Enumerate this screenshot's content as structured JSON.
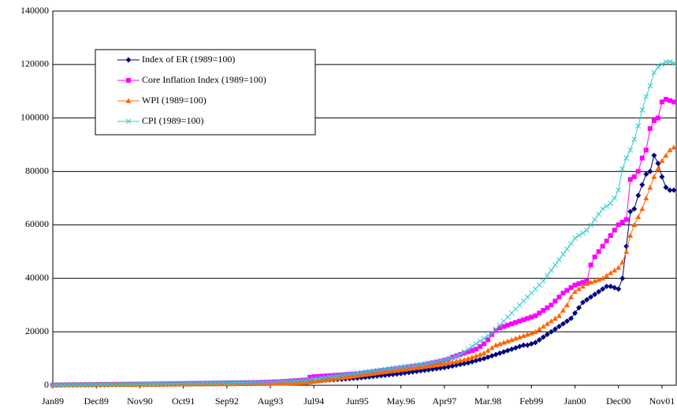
{
  "chart_data": {
    "type": "line",
    "categories": [
      "Jan89",
      null,
      null,
      null,
      null,
      null,
      null,
      null,
      null,
      null,
      null,
      "Dec89",
      null,
      null,
      null,
      null,
      null,
      null,
      null,
      null,
      null,
      null,
      "Nov90",
      null,
      null,
      null,
      null,
      null,
      null,
      null,
      null,
      null,
      null,
      "Oct91",
      null,
      null,
      null,
      null,
      null,
      null,
      null,
      null,
      null,
      null,
      "Sep92",
      null,
      null,
      null,
      null,
      null,
      null,
      null,
      null,
      null,
      null,
      "Aug93",
      null,
      null,
      null,
      null,
      null,
      null,
      null,
      null,
      null,
      null,
      "Jul94",
      null,
      null,
      null,
      null,
      null,
      null,
      null,
      null,
      null,
      null,
      "Jun95",
      null,
      null,
      null,
      null,
      null,
      null,
      null,
      null,
      null,
      null,
      "May.96",
      null,
      null,
      null,
      null,
      null,
      null,
      null,
      null,
      null,
      null,
      "Apr97",
      null,
      null,
      null,
      null,
      null,
      null,
      null,
      null,
      null,
      null,
      "Mar.98",
      null,
      null,
      null,
      null,
      null,
      null,
      null,
      null,
      null,
      null,
      "Feb99",
      null,
      null,
      null,
      null,
      null,
      null,
      null,
      null,
      null,
      null,
      "Jan00",
      null,
      null,
      null,
      null,
      null,
      null,
      null,
      null,
      null,
      null,
      "Dec00",
      null,
      null,
      null,
      null,
      null,
      null,
      null,
      null,
      null,
      null,
      "Nov01",
      null,
      null,
      null
    ],
    "series": [
      {
        "name": "Index of ER (1989=100)",
        "color": "#000080",
        "marker": "diamond",
        "values": [
          100,
          110,
          120,
          130,
          140,
          150,
          160,
          170,
          180,
          190,
          200,
          210,
          220,
          230,
          240,
          250,
          260,
          270,
          280,
          290,
          300,
          310,
          320,
          330,
          340,
          350,
          360,
          380,
          400,
          420,
          440,
          460,
          480,
          500,
          520,
          540,
          560,
          580,
          600,
          620,
          640,
          660,
          680,
          700,
          720,
          740,
          760,
          780,
          800,
          820,
          840,
          860,
          880,
          900,
          920,
          940,
          960,
          980,
          1000,
          1050,
          1100,
          1150,
          1200,
          1300,
          1400,
          1500,
          1600,
          1700,
          1800,
          1900,
          2000,
          2100,
          2200,
          2300,
          2400,
          2500,
          2600,
          2700,
          2850,
          3000,
          3150,
          3300,
          3450,
          3600,
          3750,
          3900,
          4050,
          4200,
          4400,
          4600,
          4800,
          5000,
          5200,
          5400,
          5600,
          5800,
          6000,
          6200,
          6400,
          6600,
          6900,
          7200,
          7500,
          7800,
          8100,
          8400,
          8800,
          9200,
          9600,
          10000,
          10500,
          11000,
          11500,
          12000,
          12500,
          13000,
          13500,
          14000,
          14500,
          15000,
          15000,
          15500,
          16000,
          17000,
          18000,
          19000,
          20000,
          21000,
          22000,
          23000,
          24000,
          25000,
          27000,
          29000,
          31000,
          32000,
          33000,
          34000,
          35000,
          36000,
          37000,
          37000,
          36500,
          36000,
          40000,
          52000,
          65000,
          66000,
          71000,
          75000,
          79000,
          80000,
          86000,
          83000,
          78000,
          74000,
          73000,
          73000
        ]
      },
      {
        "name": "Core Inflation Index (1989=100)",
        "color": "#ff00ff",
        "marker": "square",
        "values": [
          100,
          115,
          130,
          145,
          160,
          175,
          190,
          205,
          220,
          235,
          250,
          265,
          280,
          295,
          310,
          325,
          340,
          355,
          370,
          385,
          400,
          415,
          430,
          445,
          460,
          480,
          500,
          520,
          540,
          560,
          580,
          600,
          620,
          640,
          660,
          680,
          700,
          720,
          740,
          760,
          780,
          800,
          820,
          840,
          860,
          880,
          900,
          920,
          940,
          960,
          980,
          1000,
          1050,
          1100,
          1150,
          1200,
          1250,
          1300,
          1400,
          1500,
          1600,
          1700,
          1800,
          1900,
          2000,
          3000,
          3200,
          3300,
          3400,
          3500,
          3600,
          3700,
          3800,
          3900,
          4000,
          4100,
          4200,
          4300,
          4500,
          4700,
          4900,
          5100,
          5300,
          5500,
          5700,
          5900,
          6100,
          6300,
          6500,
          6700,
          6900,
          7100,
          7300,
          7500,
          7800,
          8100,
          8400,
          8700,
          9000,
          9400,
          9800,
          10500,
          11000,
          11500,
          12000,
          12500,
          13000,
          13500,
          14500,
          15500,
          17000,
          19000,
          20500,
          21500,
          22000,
          22500,
          23000,
          23500,
          24000,
          24500,
          25000,
          25500,
          26000,
          27000,
          28000,
          29000,
          30000,
          31500,
          33000,
          34500,
          35500,
          36500,
          37500,
          38000,
          38500,
          39000,
          45000,
          48000,
          50000,
          52000,
          54000,
          56000,
          58000,
          60000,
          61000,
          62000,
          77000,
          78000,
          80000,
          85000,
          88000,
          96000,
          99000,
          100000,
          106000,
          107000,
          106500,
          106000
        ]
      },
      {
        "name": "WPI (1989=100)",
        "color": "#ff6600",
        "marker": "triangle",
        "values": [
          100,
          108,
          116,
          124,
          132,
          140,
          148,
          156,
          164,
          172,
          180,
          188,
          196,
          204,
          212,
          220,
          228,
          236,
          244,
          252,
          260,
          268,
          276,
          284,
          292,
          300,
          310,
          320,
          330,
          340,
          350,
          360,
          370,
          380,
          390,
          400,
          410,
          420,
          430,
          440,
          450,
          460,
          470,
          480,
          490,
          500,
          510,
          520,
          530,
          540,
          550,
          560,
          580,
          600,
          620,
          640,
          660,
          680,
          700,
          720,
          750,
          800,
          850,
          900,
          1000,
          1200,
          1400,
          1600,
          1800,
          2000,
          2200,
          2400,
          2600,
          2800,
          3000,
          3200,
          3400,
          3600,
          3800,
          4000,
          4200,
          4400,
          4600,
          4800,
          5000,
          5200,
          5400,
          5600,
          5800,
          6000,
          6200,
          6400,
          6600,
          6800,
          7000,
          7200,
          7400,
          7600,
          7800,
          8100,
          8400,
          8700,
          9000,
          9300,
          9600,
          10000,
          10500,
          11000,
          11500,
          12000,
          13000,
          14000,
          15000,
          15500,
          16000,
          16500,
          17000,
          17500,
          18000,
          18500,
          19000,
          19500,
          20000,
          21000,
          22000,
          23000,
          24000,
          25000,
          26000,
          28000,
          30000,
          33000,
          35000,
          36000,
          37000,
          38000,
          38500,
          39000,
          39500,
          40000,
          41000,
          42000,
          43000,
          44000,
          46000,
          50000,
          56000,
          60000,
          63000,
          66000,
          70000,
          74000,
          78000,
          81000,
          84000,
          86000,
          88000,
          89000
        ]
      },
      {
        "name": "CPI (1989=100)",
        "color": "#33cccc",
        "marker": "x",
        "values": [
          100,
          120,
          140,
          160,
          180,
          200,
          220,
          240,
          260,
          280,
          300,
          320,
          340,
          360,
          380,
          400,
          420,
          440,
          460,
          480,
          500,
          520,
          540,
          560,
          580,
          600,
          620,
          640,
          660,
          680,
          700,
          720,
          740,
          760,
          780,
          800,
          820,
          840,
          860,
          880,
          900,
          920,
          940,
          960,
          980,
          1000,
          1020,
          1040,
          1060,
          1080,
          1100,
          1150,
          1200,
          1250,
          1300,
          1350,
          1400,
          1450,
          1500,
          1550,
          1600,
          1700,
          1800,
          1900,
          2000,
          2200,
          2400,
          2600,
          2800,
          3000,
          3200,
          3400,
          3600,
          3800,
          4000,
          4200,
          4400,
          4600,
          4800,
          5000,
          5200,
          5400,
          5600,
          5800,
          6000,
          6200,
          6400,
          6600,
          6800,
          7000,
          7200,
          7400,
          7600,
          7800,
          8000,
          8300,
          8600,
          8900,
          9200,
          9500,
          9900,
          10300,
          10800,
          11500,
          12500,
          13500,
          14500,
          15500,
          16500,
          17500,
          18500,
          19500,
          21000,
          22500,
          24000,
          25500,
          27000,
          28500,
          30000,
          31500,
          33000,
          34500,
          36000,
          37500,
          39000,
          41000,
          43000,
          45000,
          47000,
          49000,
          51000,
          53000,
          55000,
          56000,
          57000,
          58000,
          60000,
          62000,
          64000,
          66000,
          67000,
          68000,
          70000,
          73000,
          81000,
          85000,
          88000,
          92000,
          97000,
          103000,
          108000,
          112000,
          117000,
          119000,
          120000,
          121000,
          121000,
          120500
        ]
      }
    ],
    "ylim": [
      0,
      140000
    ],
    "yticks": [
      0,
      20000,
      40000,
      60000,
      80000,
      100000,
      120000,
      140000
    ],
    "grid": true,
    "legend": "upper left"
  }
}
